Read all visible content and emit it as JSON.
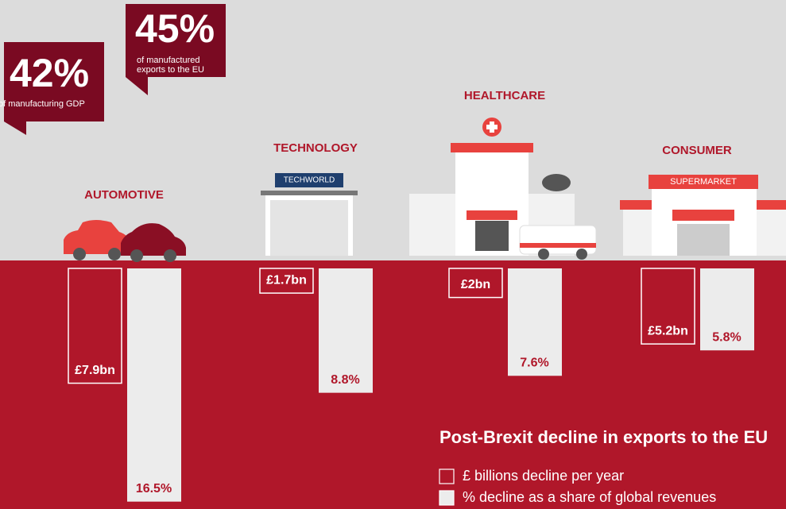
{
  "callouts": [
    {
      "value": "45%",
      "lines": [
        "of manufactured",
        "exports to the EU"
      ]
    },
    {
      "value": "42%",
      "lines": [
        "of manufacturing GDP"
      ]
    }
  ],
  "signs": {
    "technology": "TECHWORLD",
    "consumer": "SUPERMARKET"
  },
  "chart_data": {
    "type": "bar",
    "title": "Post-Brexit decline in exports to the EU",
    "categories": [
      "AUTOMOTIVE",
      "TECHNOLOGY",
      "HEALTHCARE",
      "CONSUMER"
    ],
    "series": [
      {
        "name": "£ billions decline per year",
        "color": "#b0172a",
        "values": [
          7.9,
          1.7,
          2,
          5.2
        ],
        "value_labels": [
          "£7.9bn",
          "£1.7bn",
          "£2bn",
          "£5.2bn"
        ]
      },
      {
        "name": "% decline as a share of global revenues",
        "color": "#ececec",
        "values": [
          16.5,
          8.8,
          7.6,
          5.8
        ],
        "value_labels": [
          "16.5%",
          "8.8%",
          "7.6%",
          "5.8%"
        ]
      }
    ]
  }
}
